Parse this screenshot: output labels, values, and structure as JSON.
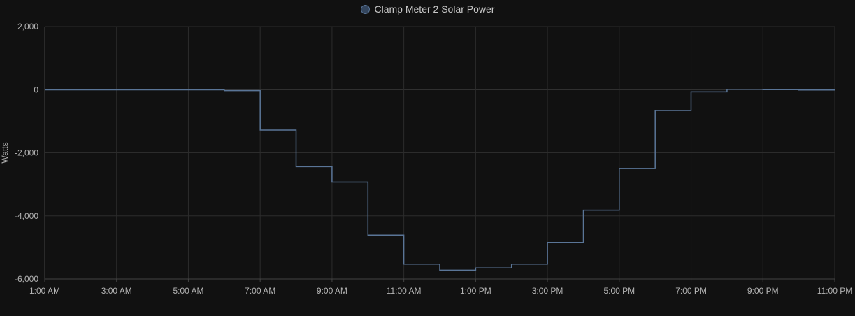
{
  "chart_data": {
    "type": "line",
    "step": true,
    "legend_position": "top-center",
    "grid": true,
    "ylabel": "Watts",
    "xlabel": "",
    "ylim": [
      -6000,
      2000
    ],
    "y_ticks": [
      2000,
      0,
      -2000,
      -4000,
      -6000
    ],
    "y_tick_labels": [
      "2,000",
      "0",
      "-2,000",
      "-4,000",
      "-6,000"
    ],
    "x_range_hours": [
      1,
      23
    ],
    "x_ticks_hours": [
      1,
      3,
      5,
      7,
      9,
      11,
      13,
      15,
      17,
      19,
      21,
      23
    ],
    "x_tick_labels": [
      "1:00 AM",
      "3:00 AM",
      "5:00 AM",
      "7:00 AM",
      "9:00 AM",
      "11:00 AM",
      "1:00 PM",
      "3:00 PM",
      "5:00 PM",
      "7:00 PM",
      "9:00 PM",
      "11:00 PM"
    ],
    "series": [
      {
        "name": "Clamp Meter 2 Solar Power",
        "color": "#5a7597",
        "x_hours": [
          1,
          6,
          7,
          8,
          9,
          10,
          11,
          12,
          13,
          14,
          15,
          16,
          17,
          18,
          19,
          20,
          21,
          22,
          23
        ],
        "values": [
          -5,
          -30,
          -1280,
          -2440,
          -2930,
          -4610,
          -5530,
          -5720,
          -5650,
          -5530,
          -4840,
          -3820,
          -2500,
          -660,
          -70,
          10,
          0,
          -10,
          -5
        ]
      }
    ]
  },
  "colors": {
    "background": "#111111",
    "grid": "#2c2c2c",
    "axis": "#444444",
    "tick_text": "#b4b4b4",
    "series": "#5a7597"
  }
}
